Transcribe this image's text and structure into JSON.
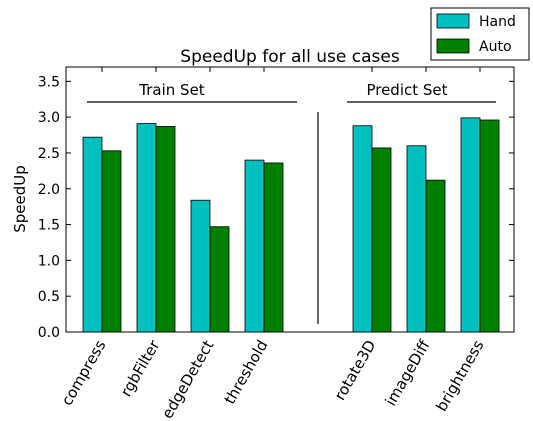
{
  "chart_data": {
    "type": "bar",
    "title": "SpeedUp for all use cases",
    "xlabel": "",
    "ylabel": "SpeedUp",
    "ylim": [
      0,
      3.7
    ],
    "yticks": [
      "0.0",
      "0.5",
      "1.0",
      "1.5",
      "2.0",
      "2.5",
      "3.0",
      "3.5"
    ],
    "grid": false,
    "legend_position": "top-right outside",
    "groups": [
      {
        "label": "Train Set",
        "categories": [
          "compress",
          "rgbFilter",
          "edgeDetect",
          "threshold"
        ]
      },
      {
        "label": "Predict Set",
        "categories": [
          "rotate3D",
          "imageDiff",
          "brightness"
        ]
      }
    ],
    "categories": [
      "compress",
      "rgbFilter",
      "edgeDetect",
      "threshold",
      "rotate3D",
      "imageDiff",
      "brightness"
    ],
    "series": [
      {
        "name": "Hand",
        "color": "#00bfbf",
        "values": [
          2.72,
          2.91,
          1.84,
          2.4,
          2.88,
          2.6,
          2.99
        ]
      },
      {
        "name": "Auto",
        "color": "#008000",
        "values": [
          2.53,
          2.87,
          1.47,
          2.36,
          2.57,
          2.12,
          2.96
        ]
      }
    ]
  }
}
